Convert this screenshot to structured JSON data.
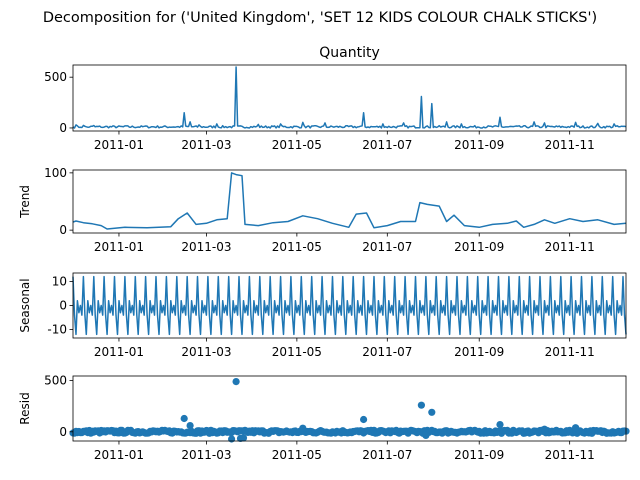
{
  "figure": {
    "suptitle": "Decomposition for ('United Kingdom', 'SET 12 KIDS COLOUR  CHALK STICKS')"
  },
  "style": {
    "series_color": "#1f77b4",
    "axis_color": "#000000",
    "background": "#ffffff"
  },
  "chart_data": [
    {
      "type": "line",
      "title": "Quantity",
      "ylabel": "",
      "x_range": [
        "2010-12-01",
        "2011-12-09"
      ],
      "ylim": [
        -30,
        620
      ],
      "yticks": [
        0,
        500
      ],
      "xticks": [
        "2011-01",
        "2011-03",
        "2011-05",
        "2011-07",
        "2011-09",
        "2011-11"
      ],
      "grid": false,
      "baseline": 12,
      "points": [
        {
          "x": "2010-12-01",
          "y": 10
        },
        {
          "x": "2010-12-03",
          "y": 30
        },
        {
          "x": "2010-12-05",
          "y": 5
        },
        {
          "x": "2010-12-08",
          "y": 25
        },
        {
          "x": "2010-12-12",
          "y": 8
        },
        {
          "x": "2010-12-15",
          "y": 24
        },
        {
          "x": "2010-12-20",
          "y": 6
        },
        {
          "x": "2011-01-06",
          "y": 20
        },
        {
          "x": "2011-01-20",
          "y": 18
        },
        {
          "x": "2011-02-14",
          "y": 150
        },
        {
          "x": "2011-02-18",
          "y": 60
        },
        {
          "x": "2011-02-24",
          "y": 30
        },
        {
          "x": "2011-03-08",
          "y": 40
        },
        {
          "x": "2011-03-21",
          "y": 600
        },
        {
          "x": "2011-04-05",
          "y": 35
        },
        {
          "x": "2011-04-20",
          "y": 40
        },
        {
          "x": "2011-05-05",
          "y": 55
        },
        {
          "x": "2011-05-20",
          "y": 50
        },
        {
          "x": "2011-06-15",
          "y": 150
        },
        {
          "x": "2011-06-28",
          "y": 40
        },
        {
          "x": "2011-07-12",
          "y": 50
        },
        {
          "x": "2011-07-24",
          "y": 310
        },
        {
          "x": "2011-07-31",
          "y": 240
        },
        {
          "x": "2011-08-10",
          "y": 60
        },
        {
          "x": "2011-08-20",
          "y": 40
        },
        {
          "x": "2011-09-15",
          "y": 105
        },
        {
          "x": "2011-10-08",
          "y": 60
        },
        {
          "x": "2011-10-15",
          "y": 50
        },
        {
          "x": "2011-11-05",
          "y": 55
        },
        {
          "x": "2011-11-20",
          "y": 45
        },
        {
          "x": "2011-12-01",
          "y": 40
        }
      ]
    },
    {
      "type": "line",
      "title": "",
      "ylabel": "Trend",
      "x_range": [
        "2010-12-01",
        "2011-12-09"
      ],
      "ylim": [
        -5,
        105
      ],
      "yticks": [
        0,
        100
      ],
      "xticks": [
        "2011-01",
        "2011-03",
        "2011-05",
        "2011-07",
        "2011-09",
        "2011-11"
      ],
      "grid": false,
      "points": [
        {
          "x": "2010-12-01",
          "y": 14
        },
        {
          "x": "2010-12-03",
          "y": 16
        },
        {
          "x": "2010-12-08",
          "y": 13
        },
        {
          "x": "2010-12-14",
          "y": 11
        },
        {
          "x": "2010-12-20",
          "y": 8
        },
        {
          "x": "2010-12-24",
          "y": 2
        },
        {
          "x": "2011-01-05",
          "y": 5
        },
        {
          "x": "2011-01-20",
          "y": 4
        },
        {
          "x": "2011-02-05",
          "y": 6
        },
        {
          "x": "2011-02-10",
          "y": 20
        },
        {
          "x": "2011-02-16",
          "y": 30
        },
        {
          "x": "2011-02-22",
          "y": 10
        },
        {
          "x": "2011-03-01",
          "y": 12
        },
        {
          "x": "2011-03-08",
          "y": 18
        },
        {
          "x": "2011-03-15",
          "y": 20
        },
        {
          "x": "2011-03-18",
          "y": 100
        },
        {
          "x": "2011-03-21",
          "y": 97
        },
        {
          "x": "2011-03-25",
          "y": 95
        },
        {
          "x": "2011-03-27",
          "y": 10
        },
        {
          "x": "2011-04-05",
          "y": 8
        },
        {
          "x": "2011-04-15",
          "y": 13
        },
        {
          "x": "2011-04-25",
          "y": 15
        },
        {
          "x": "2011-05-05",
          "y": 25
        },
        {
          "x": "2011-05-15",
          "y": 20
        },
        {
          "x": "2011-05-25",
          "y": 12
        },
        {
          "x": "2011-06-05",
          "y": 5
        },
        {
          "x": "2011-06-10",
          "y": 28
        },
        {
          "x": "2011-06-17",
          "y": 30
        },
        {
          "x": "2011-06-22",
          "y": 4
        },
        {
          "x": "2011-07-01",
          "y": 8
        },
        {
          "x": "2011-07-10",
          "y": 15
        },
        {
          "x": "2011-07-20",
          "y": 15
        },
        {
          "x": "2011-07-23",
          "y": 48
        },
        {
          "x": "2011-07-28",
          "y": 45
        },
        {
          "x": "2011-08-05",
          "y": 42
        },
        {
          "x": "2011-08-10",
          "y": 15
        },
        {
          "x": "2011-08-15",
          "y": 26
        },
        {
          "x": "2011-08-22",
          "y": 8
        },
        {
          "x": "2011-09-01",
          "y": 5
        },
        {
          "x": "2011-09-10",
          "y": 10
        },
        {
          "x": "2011-09-20",
          "y": 12
        },
        {
          "x": "2011-09-26",
          "y": 16
        },
        {
          "x": "2011-10-01",
          "y": 5
        },
        {
          "x": "2011-10-08",
          "y": 10
        },
        {
          "x": "2011-10-15",
          "y": 18
        },
        {
          "x": "2011-10-22",
          "y": 12
        },
        {
          "x": "2011-11-01",
          "y": 20
        },
        {
          "x": "2011-11-10",
          "y": 15
        },
        {
          "x": "2011-11-20",
          "y": 18
        },
        {
          "x": "2011-12-01",
          "y": 10
        },
        {
          "x": "2011-12-09",
          "y": 12
        }
      ]
    },
    {
      "type": "line",
      "title": "",
      "ylabel": "Seasonal",
      "x_range": [
        "2010-12-01",
        "2011-12-09"
      ],
      "ylim": [
        -13.5,
        13.5
      ],
      "yticks": [
        -10,
        0,
        10
      ],
      "xticks": [
        "2011-01",
        "2011-03",
        "2011-05",
        "2011-07",
        "2011-09",
        "2011-11"
      ],
      "grid": false,
      "period_days": 7,
      "weekly_pattern": [
        12,
        -4,
        -12,
        2,
        -3,
        0,
        -4
      ]
    },
    {
      "type": "scatter",
      "title": "",
      "ylabel": "Resid",
      "x_range": [
        "2010-12-01",
        "2011-12-09"
      ],
      "ylim": [
        -90,
        545
      ],
      "yticks": [
        0,
        500
      ],
      "xticks": [
        "2011-01",
        "2011-03",
        "2011-05",
        "2011-07",
        "2011-09",
        "2011-11"
      ],
      "grid": false,
      "points": [
        {
          "x": "2011-02-14",
          "y": 130
        },
        {
          "x": "2011-02-18",
          "y": 60
        },
        {
          "x": "2011-03-21",
          "y": 490
        },
        {
          "x": "2011-03-18",
          "y": -70
        },
        {
          "x": "2011-03-24",
          "y": -65
        },
        {
          "x": "2011-03-26",
          "y": -60
        },
        {
          "x": "2011-06-15",
          "y": 120
        },
        {
          "x": "2011-07-24",
          "y": 260
        },
        {
          "x": "2011-07-31",
          "y": 190
        },
        {
          "x": "2011-07-27",
          "y": -35
        },
        {
          "x": "2011-09-15",
          "y": 70
        },
        {
          "x": "2011-05-05",
          "y": 35
        },
        {
          "x": "2011-10-15",
          "y": 25
        },
        {
          "x": "2011-11-05",
          "y": 40
        }
      ]
    }
  ]
}
